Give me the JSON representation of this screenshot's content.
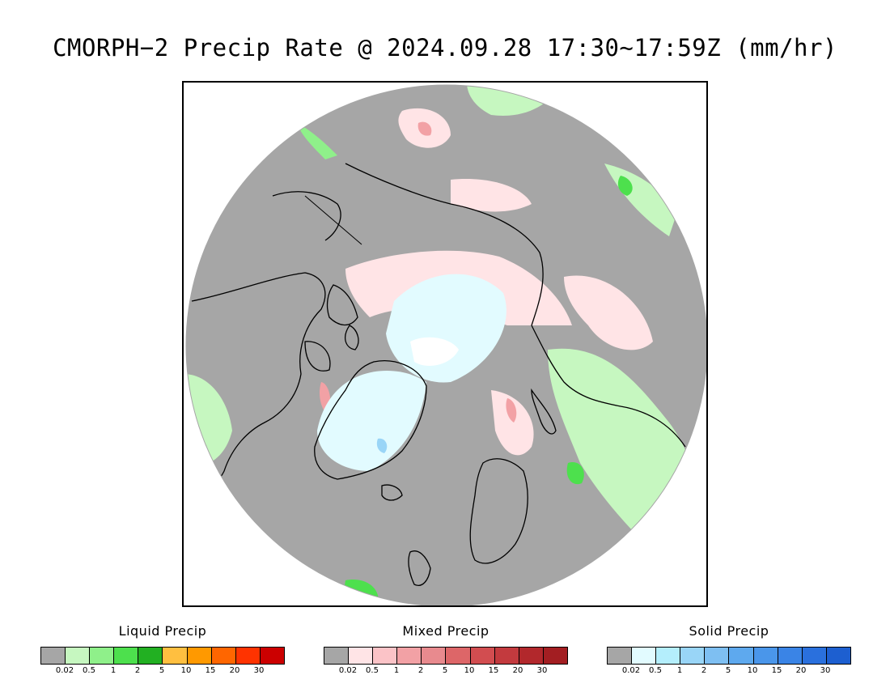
{
  "title": "CMORPH−2 Precip Rate @ 2024.09.28 17:30∼17:59Z (mm/hr)",
  "map": {
    "colors": {
      "no_precip": "#a6a6a6",
      "frame": "#000000"
    }
  },
  "legends": [
    {
      "title": "Liquid Precip",
      "colors": [
        "#a6a6a6",
        "#c6f7c0",
        "#8ff08a",
        "#4de04d",
        "#22b022",
        "#ffbf40",
        "#ff9900",
        "#ff6600",
        "#ff3300",
        "#cc0000"
      ],
      "ticks": [
        "0.02",
        "0.5",
        "1",
        "2",
        "5",
        "10",
        "15",
        "20",
        "30"
      ]
    },
    {
      "title": "Mixed Precip",
      "colors": [
        "#a6a6a6",
        "#ffe4e6",
        "#fbc3c7",
        "#f2a1a5",
        "#e88a8e",
        "#dd6668",
        "#d24d50",
        "#c33a3e",
        "#b2282c",
        "#a31e22"
      ],
      "ticks": [
        "0.02",
        "0.5",
        "1",
        "2",
        "5",
        "10",
        "15",
        "20",
        "30"
      ]
    },
    {
      "title": "Solid Precip",
      "colors": [
        "#a6a6a6",
        "#e2fbff",
        "#b4eefc",
        "#99d5f7",
        "#7ebff2",
        "#5ea9ee",
        "#4a96ea",
        "#3a84e6",
        "#2a70dd",
        "#1d5fd0"
      ],
      "ticks": [
        "0.02",
        "0.5",
        "1",
        "2",
        "5",
        "10",
        "15",
        "20",
        "30"
      ]
    }
  ]
}
